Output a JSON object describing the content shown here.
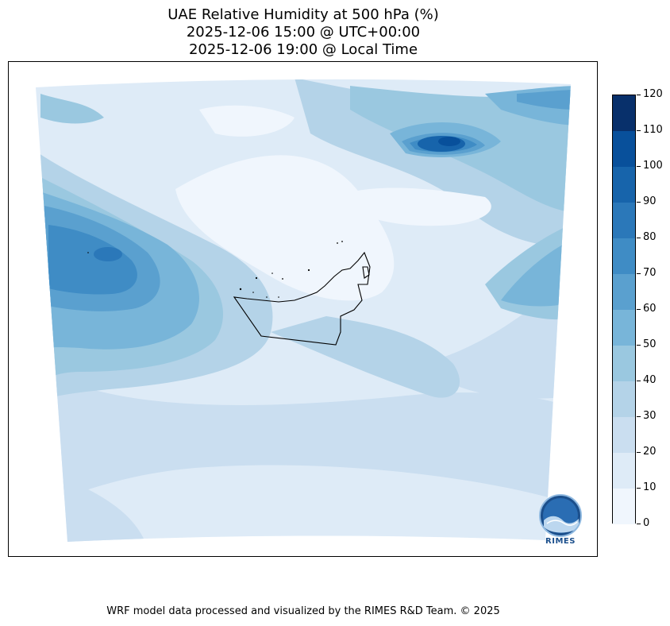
{
  "title": {
    "line1": "UAE Relative Humidity at 500 hPa (%)",
    "line2": "2025-12-06 15:00 @ UTC+00:00",
    "line3": "2025-12-06 19:00 @ Local Time"
  },
  "colorbar": {
    "ticks": [
      "0",
      "10",
      "20",
      "30",
      "40",
      "50",
      "60",
      "70",
      "80",
      "90",
      "100",
      "110",
      "120"
    ],
    "colors": [
      "#f0f6fd",
      "#deebf7",
      "#cadef0",
      "#b4d3e8",
      "#9ac8e0",
      "#78b5d9",
      "#5aa0cf",
      "#3f8cc5",
      "#2b78b9",
      "#1764ab",
      "#08509b",
      "#08306b"
    ]
  },
  "logo": {
    "text": "RIMES"
  },
  "footer": {
    "text": "WRF model data processed and visualized by the RIMES R&D Team. © 2025"
  }
}
